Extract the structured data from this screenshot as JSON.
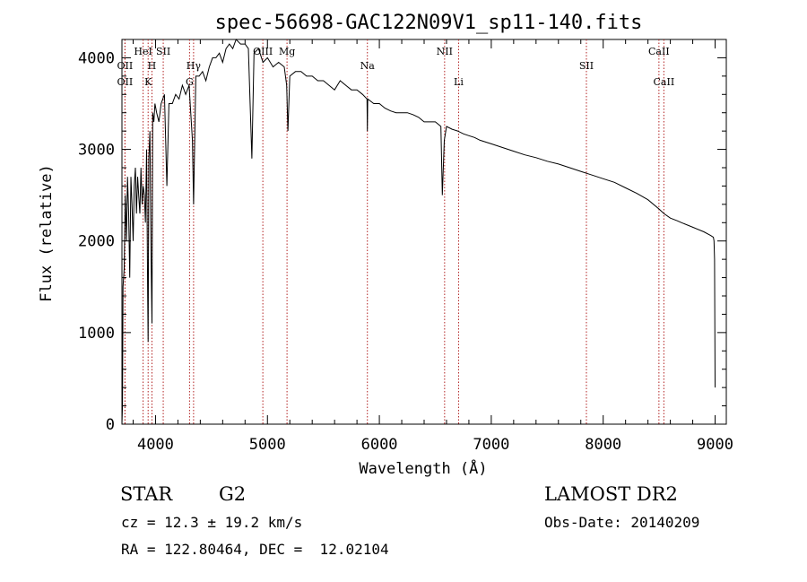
{
  "chart_data": {
    "type": "line",
    "title": "spec-56698-GAC122N09V1_sp11-140.fits",
    "xlabel": "Wavelength (Å)",
    "ylabel": "Flux (relative)",
    "xlim": [
      3700,
      9100
    ],
    "ylim": [
      0,
      4200
    ],
    "xticks": [
      4000,
      5000,
      6000,
      7000,
      8000,
      9000
    ],
    "yticks": [
      0,
      1000,
      2000,
      3000,
      4000
    ],
    "grid": false,
    "series": [
      {
        "x": [
          3700,
          3705,
          3710,
          3720,
          3730,
          3740,
          3750,
          3760,
          3770,
          3780,
          3790,
          3800,
          3810,
          3820,
          3830,
          3840,
          3850,
          3860,
          3870,
          3880,
          3890,
          3900,
          3910,
          3920,
          3930,
          3934,
          3940,
          3950,
          3960,
          3968,
          3975,
          3985,
          3995,
          4010,
          4030,
          4050,
          4080,
          4101,
          4120,
          4150,
          4180,
          4210,
          4240,
          4270,
          4300,
          4310,
          4330,
          4340,
          4360,
          4390,
          4420,
          4450,
          4480,
          4510,
          4540,
          4570,
          4600,
          4630,
          4660,
          4690,
          4720,
          4760,
          4800,
          4830,
          4861,
          4880,
          4920,
          4960,
          5000,
          5050,
          5100,
          5150,
          5172,
          5183,
          5200,
          5250,
          5300,
          5350,
          5400,
          5450,
          5500,
          5550,
          5600,
          5650,
          5700,
          5750,
          5800,
          5850,
          5890,
          5893,
          5896,
          5950,
          6000,
          6050,
          6100,
          6150,
          6200,
          6250,
          6300,
          6350,
          6400,
          6450,
          6500,
          6550,
          6563,
          6580,
          6600,
          6650,
          6700,
          6750,
          6800,
          6850,
          6900,
          6950,
          7000,
          7100,
          7200,
          7300,
          7400,
          7500,
          7600,
          7700,
          7800,
          7900,
          8000,
          8100,
          8200,
          8300,
          8400,
          8498,
          8542,
          8600,
          8662,
          8700,
          8800,
          8900,
          8960,
          8985,
          8990,
          8995,
          9000
        ],
        "y": [
          0,
          200,
          1500,
          1700,
          2500,
          2000,
          2700,
          2300,
          1600,
          2700,
          2400,
          2000,
          2600,
          2800,
          2300,
          2700,
          2500,
          2300,
          2800,
          2400,
          2600,
          2500,
          2200,
          3000,
          1400,
          900,
          2900,
          3200,
          1800,
          1100,
          3400,
          3300,
          3500,
          3400,
          3300,
          3500,
          3600,
          2600,
          3500,
          3500,
          3600,
          3550,
          3700,
          3600,
          3700,
          3500,
          3100,
          2400,
          3800,
          3800,
          3850,
          3750,
          3900,
          4000,
          4000,
          4050,
          3950,
          4100,
          4150,
          4100,
          4200,
          4150,
          4150,
          4100,
          2900,
          4050,
          4100,
          3950,
          4000,
          3900,
          3950,
          3900,
          3700,
          3200,
          3800,
          3850,
          3850,
          3800,
          3800,
          3750,
          3750,
          3700,
          3650,
          3750,
          3700,
          3650,
          3650,
          3600,
          3550,
          3200,
          3550,
          3500,
          3500,
          3450,
          3420,
          3400,
          3400,
          3400,
          3380,
          3350,
          3300,
          3300,
          3300,
          3250,
          2500,
          3100,
          3250,
          3220,
          3200,
          3170,
          3150,
          3130,
          3100,
          3080,
          3060,
          3020,
          2980,
          2940,
          2910,
          2870,
          2840,
          2800,
          2760,
          2720,
          2680,
          2640,
          2580,
          2520,
          2450,
          2350,
          2300,
          2250,
          2220,
          2200,
          2150,
          2100,
          2060,
          2040,
          2000,
          1800,
          400
        ]
      }
    ],
    "lines": [
      {
        "x": 3727,
        "label": "OII",
        "row": 1
      },
      {
        "x": 3727,
        "label": "OII",
        "row": 2
      },
      {
        "x": 3889,
        "label": "HeI",
        "row": 0
      },
      {
        "x": 3934,
        "label": "K",
        "row": 2
      },
      {
        "x": 3968,
        "label": "H",
        "row": 1
      },
      {
        "x": 4069,
        "label": "SII",
        "row": 0
      },
      {
        "x": 4304,
        "label": "G",
        "row": 2
      },
      {
        "x": 4340,
        "label": "Hγ",
        "row": 1
      },
      {
        "x": 4959,
        "label": "OIII",
        "row": 0
      },
      {
        "x": 5175,
        "label": "Mg",
        "row": 0
      },
      {
        "x": 5893,
        "label": "Na",
        "row": 1
      },
      {
        "x": 6583,
        "label": "NII",
        "row": 0
      },
      {
        "x": 6708,
        "label": "Li",
        "row": 2
      },
      {
        "x": 7850,
        "label": "SII",
        "row": 1
      },
      {
        "x": 8498,
        "label": "CaII",
        "row": 0
      },
      {
        "x": 8542,
        "label": "CaII",
        "row": 2
      }
    ]
  },
  "info": {
    "class": "STAR",
    "subclass": "G2",
    "survey": "LAMOST DR2",
    "cz": "cz = 12.3 ± 19.2 km/s",
    "obs_date": "Obs-Date: 20140209",
    "radec": "RA = 122.80464, DEC =  12.02104"
  },
  "colors": {
    "spectrum": "#000000",
    "line_markers": "#b22222"
  }
}
